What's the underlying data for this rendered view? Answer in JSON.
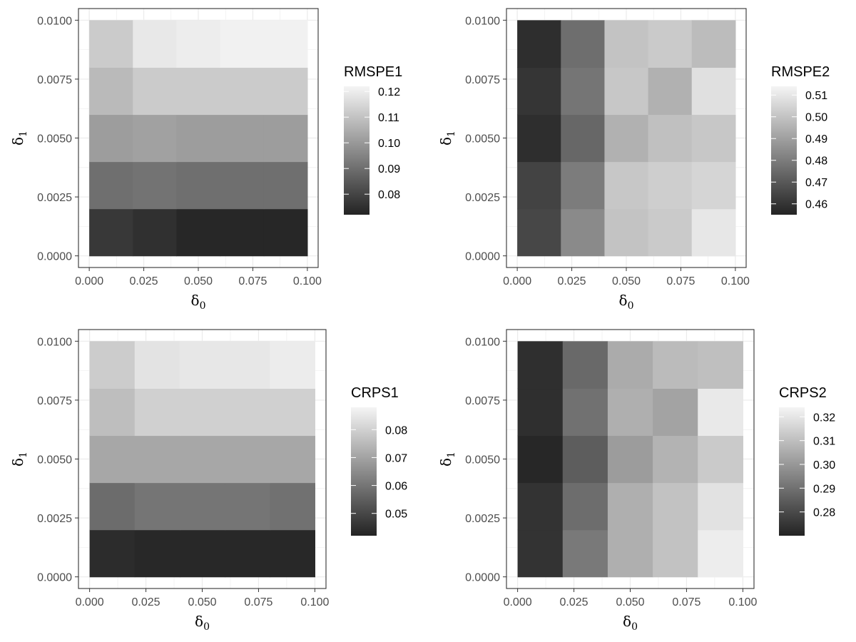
{
  "chart_data": [
    {
      "type": "heatmap",
      "legend_title": "RMSPE1",
      "xlabel": "δ0",
      "ylabel": "δ1",
      "x_ticks": [
        "0.000",
        "0.025",
        "0.050",
        "0.075",
        "0.100"
      ],
      "y_ticks": [
        "0.0000",
        "0.0025",
        "0.0050",
        "0.0075",
        "0.0100"
      ],
      "x_range": [
        0.0,
        0.1
      ],
      "y_range": [
        0.0,
        0.01
      ],
      "x_bins": [
        0.01,
        0.03,
        0.05,
        0.07,
        0.09
      ],
      "y_bins": [
        0.001,
        0.003,
        0.005,
        0.007,
        0.009
      ],
      "values": [
        [
          0.077,
          0.075,
          0.073,
          0.073,
          0.073
        ],
        [
          0.09,
          0.091,
          0.09,
          0.09,
          0.09
        ],
        [
          0.101,
          0.102,
          0.101,
          0.101,
          0.101
        ],
        [
          0.108,
          0.112,
          0.112,
          0.112,
          0.112
        ],
        [
          0.112,
          0.119,
          0.12,
          0.121,
          0.121
        ]
      ],
      "scale": {
        "min": 0.072,
        "max": 0.122
      },
      "legend_ticks": [
        0.08,
        0.09,
        0.1,
        0.11,
        0.12
      ],
      "legend_tick_labels": [
        "0.08",
        "0.09",
        "0.10",
        "0.11",
        "0.12"
      ]
    },
    {
      "type": "heatmap",
      "legend_title": "RMSPE2",
      "xlabel": "δ0",
      "ylabel": "δ1",
      "x_ticks": [
        "0.000",
        "0.025",
        "0.050",
        "0.075",
        "0.100"
      ],
      "y_ticks": [
        "0.0000",
        "0.0025",
        "0.0050",
        "0.0075",
        "0.0100"
      ],
      "x_range": [
        0.0,
        0.1
      ],
      "y_range": [
        0.0,
        0.01
      ],
      "x_bins": [
        0.01,
        0.03,
        0.05,
        0.07,
        0.09
      ],
      "y_bins": [
        0.001,
        0.003,
        0.005,
        0.007,
        0.009
      ],
      "values": [
        [
          0.465,
          0.484,
          0.5,
          0.502,
          0.51
        ],
        [
          0.464,
          0.48,
          0.501,
          0.503,
          0.505
        ],
        [
          0.458,
          0.474,
          0.495,
          0.499,
          0.501
        ],
        [
          0.46,
          0.478,
          0.501,
          0.495,
          0.508
        ],
        [
          0.458,
          0.476,
          0.5,
          0.502,
          0.498
        ]
      ],
      "scale": {
        "min": 0.455,
        "max": 0.514
      },
      "legend_ticks": [
        0.46,
        0.47,
        0.48,
        0.49,
        0.5,
        0.51
      ],
      "legend_tick_labels": [
        "0.46",
        "0.47",
        "0.48",
        "0.49",
        "0.50",
        "0.51"
      ]
    },
    {
      "type": "heatmap",
      "legend_title": "CRPS1",
      "xlabel": "δ0",
      "ylabel": "δ1",
      "x_ticks": [
        "0.000",
        "0.025",
        "0.050",
        "0.075",
        "0.100"
      ],
      "y_ticks": [
        "0.0000",
        "0.0025",
        "0.0050",
        "0.0075",
        "0.0100"
      ],
      "x_range": [
        0.0,
        0.1
      ],
      "y_range": [
        0.0,
        0.01
      ],
      "x_bins": [
        0.01,
        0.03,
        0.05,
        0.07,
        0.09
      ],
      "y_bins": [
        0.001,
        0.003,
        0.005,
        0.007,
        0.009
      ],
      "values": [
        [
          0.044,
          0.043,
          0.043,
          0.043,
          0.043
        ],
        [
          0.058,
          0.06,
          0.06,
          0.06,
          0.059
        ],
        [
          0.071,
          0.071,
          0.071,
          0.071,
          0.071
        ],
        [
          0.076,
          0.08,
          0.08,
          0.08,
          0.08
        ],
        [
          0.079,
          0.084,
          0.085,
          0.085,
          0.086
        ]
      ],
      "scale": {
        "min": 0.042,
        "max": 0.088
      },
      "legend_ticks": [
        0.05,
        0.06,
        0.07,
        0.08
      ],
      "legend_tick_labels": [
        "0.05",
        "0.06",
        "0.07",
        "0.08"
      ]
    },
    {
      "type": "heatmap",
      "legend_title": "CRPS2",
      "xlabel": "δ0",
      "ylabel": "δ1",
      "x_ticks": [
        "0.000",
        "0.025",
        "0.050",
        "0.075",
        "0.100"
      ],
      "y_ticks": [
        "0.0000",
        "0.0025",
        "0.0050",
        "0.0075",
        "0.0100"
      ],
      "x_range": [
        0.0,
        0.1
      ],
      "y_range": [
        0.0,
        0.01
      ],
      "x_bins": [
        0.01,
        0.03,
        0.05,
        0.07,
        0.09
      ],
      "y_bins": [
        0.001,
        0.003,
        0.005,
        0.007,
        0.009
      ],
      "values": [
        [
          0.274,
          0.292,
          0.306,
          0.311,
          0.322
        ],
        [
          0.274,
          0.289,
          0.306,
          0.311,
          0.319
        ],
        [
          0.271,
          0.285,
          0.301,
          0.307,
          0.313
        ],
        [
          0.273,
          0.29,
          0.306,
          0.303,
          0.321
        ],
        [
          0.273,
          0.288,
          0.305,
          0.309,
          0.31
        ]
      ],
      "scale": {
        "min": 0.27,
        "max": 0.324
      },
      "legend_ticks": [
        0.28,
        0.29,
        0.3,
        0.31,
        0.32
      ],
      "legend_tick_labels": [
        "0.28",
        "0.29",
        "0.30",
        "0.31",
        "0.32"
      ]
    }
  ],
  "colors": {
    "low": "#232323",
    "high": "#f5f5f5",
    "panel_border": "#333333",
    "grid": "#ebebeb",
    "tick_text": "#4d4d4d"
  }
}
